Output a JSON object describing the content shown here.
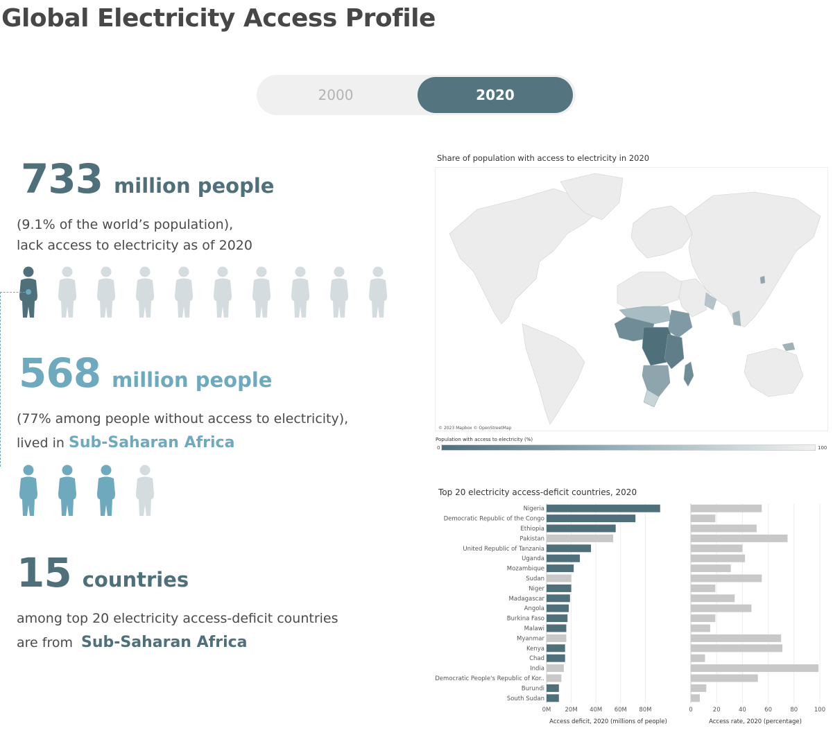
{
  "page": {
    "title": "Global Electricity Access Profile"
  },
  "toggle": {
    "options": [
      "2000",
      "2020"
    ],
    "selected": "2020"
  },
  "stats": {
    "lacking": {
      "number": "733",
      "unit": "million people",
      "line1": "(9.1% of the world’s population),",
      "line2": "lack access to electricity as of 2020"
    },
    "ssa": {
      "number": "568",
      "unit": "million people",
      "line1": "(77% among people without access to electricity),",
      "line2_prefix": "lived in",
      "line2_highlight": "Sub-Saharan Africa"
    },
    "countries": {
      "number": "15",
      "unit": "countries",
      "line1": "among top 20 electricity access-deficit countries",
      "line2_prefix": "are from",
      "line2_highlight": "Sub-Saharan Africa"
    }
  },
  "pictograms": {
    "row1": {
      "total": 10,
      "highlighted": 1
    },
    "row2": {
      "total": 4,
      "highlighted": 3
    }
  },
  "colors": {
    "dark": "#4f6f7b",
    "teal": "#6ea9bd",
    "grey": "#d4dcdf",
    "bar_grey": "#c8c8c8"
  },
  "map": {
    "title": "Share of population with access to electricity in 2020",
    "attribution": "© 2023 Mapbox © OpenStreetMap",
    "legend_title": "Population with access to electricity (%)",
    "legend_min": "0",
    "legend_max": "100"
  },
  "chart_data": {
    "type": "bar",
    "title": "Top 20 electricity access-deficit countries, 2020",
    "categories": [
      "Nigeria",
      "Democratic Republic of the Congo",
      "Ethiopia",
      "Pakistan",
      "United Republic of Tanzania",
      "Uganda",
      "Mozambique",
      "Sudan",
      "Niger",
      "Madagascar",
      "Angola",
      "Burkina Faso",
      "Malawi",
      "Myanmar",
      "Kenya",
      "Chad",
      "India",
      "Democratic People's Republic of Kor..",
      "Burundi",
      "South Sudan"
    ],
    "sub_saharan": [
      true,
      true,
      true,
      false,
      true,
      true,
      true,
      false,
      true,
      true,
      true,
      true,
      true,
      false,
      true,
      true,
      false,
      false,
      true,
      true
    ],
    "series": [
      {
        "name": "Access deficit, 2020 (millions of people)",
        "values": [
          92,
          72,
          56,
          54,
          36,
          27,
          22,
          20,
          20,
          19,
          18,
          17,
          16,
          16,
          15,
          15,
          14,
          12,
          10,
          10
        ],
        "ticks": [
          "0M",
          "20M",
          "40M",
          "60M",
          "80M"
        ],
        "xlim": [
          0,
          100
        ]
      },
      {
        "name": "Access rate, 2020 (percentage)",
        "values": [
          55,
          19,
          51,
          75,
          40,
          42,
          31,
          55,
          19,
          34,
          47,
          19,
          15,
          70,
          71,
          11,
          99,
          52,
          12,
          7
        ],
        "ticks": [
          "0",
          "20",
          "40",
          "60",
          "80",
          "100"
        ],
        "xlim": [
          0,
          100
        ]
      }
    ]
  }
}
